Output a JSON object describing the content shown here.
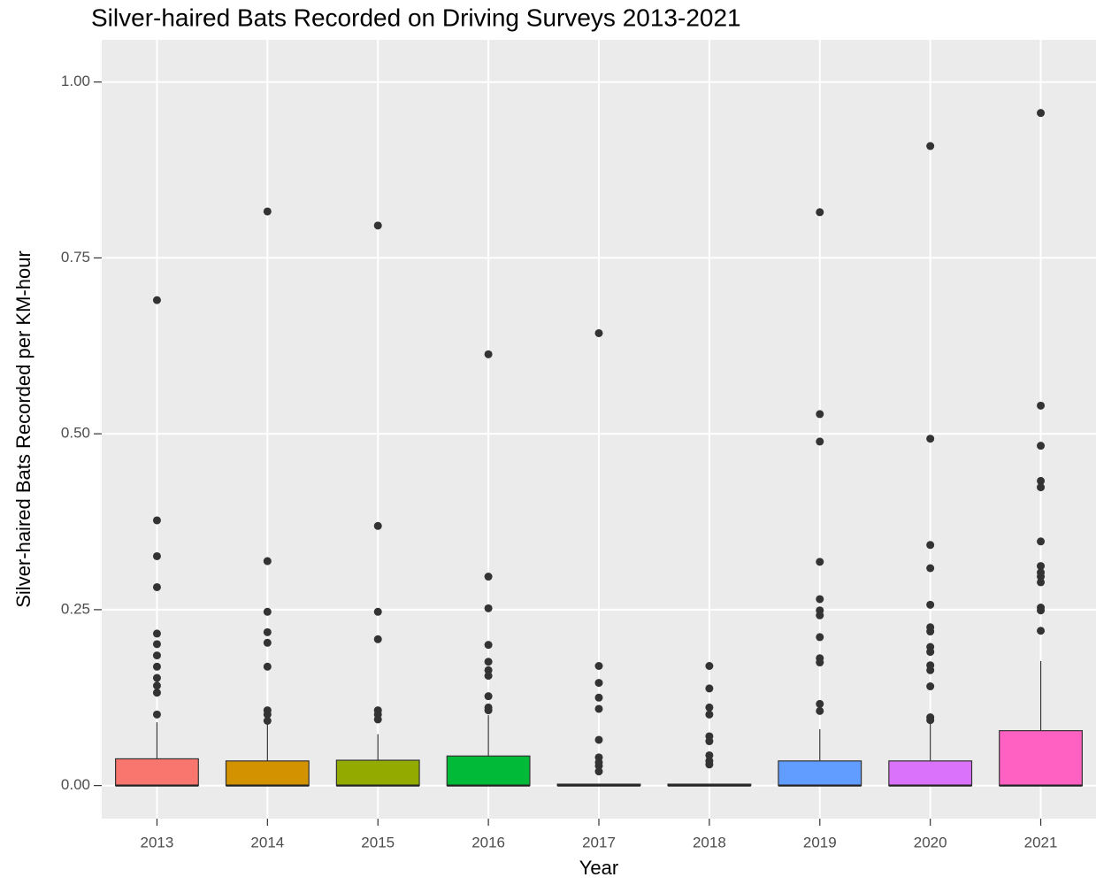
{
  "chart_data": {
    "type": "box",
    "title": "Silver-haired Bats Recorded on Driving Surveys 2013-2021",
    "x_label": "Year",
    "y_label": "Silver-haired Bats Recorded per KM-hour",
    "categories": [
      "2013",
      "2014",
      "2015",
      "2016",
      "2017",
      "2018",
      "2019",
      "2020",
      "2021"
    ],
    "colors": [
      "#F8766D",
      "#D39200",
      "#93AA00",
      "#00BA38",
      "#00C19F",
      "#00B9E3",
      "#619CFF",
      "#DB72FB",
      "#FF61C3"
    ],
    "boxes": [
      {
        "min": 0,
        "q1": 0,
        "median": 0,
        "q3": 0.038,
        "max": 0.09,
        "outliers": [
          0.69,
          0.377,
          0.326,
          0.282,
          0.216,
          0.201,
          0.185,
          0.169,
          0.153,
          0.142,
          0.132,
          0.101
        ]
      },
      {
        "min": 0,
        "q1": 0,
        "median": 0,
        "q3": 0.035,
        "max": 0.088,
        "outliers": [
          0.816,
          0.319,
          0.247,
          0.218,
          0.203,
          0.169,
          0.107,
          0.101,
          0.092
        ]
      },
      {
        "min": 0,
        "q1": 0,
        "median": 0,
        "q3": 0.036,
        "max": 0.073,
        "outliers": [
          0.796,
          0.369,
          0.247,
          0.208,
          0.107,
          0.101,
          0.094
        ]
      },
      {
        "min": 0,
        "q1": 0,
        "median": 0,
        "q3": 0.042,
        "max": 0.1,
        "outliers": [
          0.613,
          0.297,
          0.252,
          0.2,
          0.176,
          0.164,
          0.156,
          0.127,
          0.111,
          0.107
        ]
      },
      {
        "min": 0,
        "q1": 0,
        "median": 0,
        "q3": 0.002,
        "max": 0.002,
        "outliers": [
          0.643,
          0.17,
          0.146,
          0.125,
          0.109,
          0.065,
          0.04,
          0.033,
          0.028,
          0.02
        ]
      },
      {
        "min": 0,
        "q1": 0,
        "median": 0,
        "q3": 0.002,
        "max": 0.002,
        "outliers": [
          0.17,
          0.138,
          0.111,
          0.101,
          0.07,
          0.063,
          0.043,
          0.035,
          0.03
        ]
      },
      {
        "min": 0,
        "q1": 0,
        "median": 0,
        "q3": 0.035,
        "max": 0.08,
        "outliers": [
          0.815,
          0.528,
          0.489,
          0.318,
          0.265,
          0.249,
          0.242,
          0.211,
          0.181,
          0.175,
          0.116,
          0.106
        ]
      },
      {
        "min": 0,
        "q1": 0,
        "median": 0,
        "q3": 0.035,
        "max": 0.088,
        "outliers": [
          0.909,
          0.493,
          0.342,
          0.309,
          0.257,
          0.225,
          0.219,
          0.197,
          0.19,
          0.171,
          0.164,
          0.141,
          0.097,
          0.093
        ]
      },
      {
        "min": 0,
        "q1": 0,
        "median": 0,
        "q3": 0.078,
        "max": 0.177,
        "outliers": [
          0.956,
          0.54,
          0.483,
          0.433,
          0.424,
          0.347,
          0.312,
          0.303,
          0.297,
          0.289,
          0.253,
          0.249,
          0.22
        ]
      }
    ],
    "ylim": [
      -0.047,
      1.06
    ],
    "yticks": [
      {
        "value": 0,
        "label": "0.00"
      },
      {
        "value": 0.25,
        "label": "0.25"
      },
      {
        "value": 0.5,
        "label": "0.50"
      },
      {
        "value": 0.75,
        "label": "0.75"
      },
      {
        "value": 1,
        "label": "1.00"
      }
    ],
    "grid": true
  }
}
